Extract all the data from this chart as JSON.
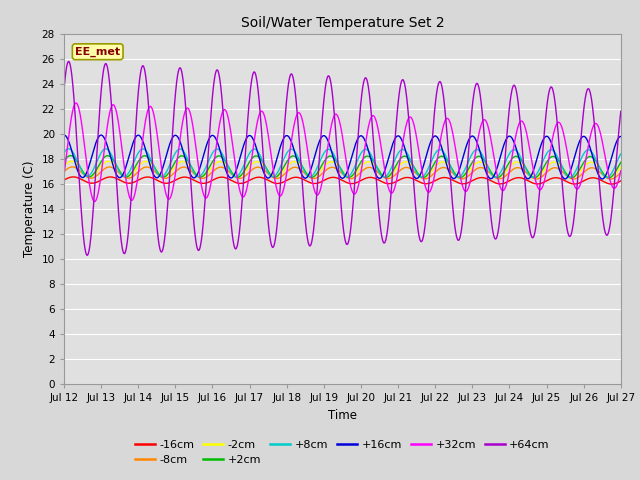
{
  "title": "Soil/Water Temperature Set 2",
  "xlabel": "Time",
  "ylabel": "Temperature (C)",
  "ylim": [
    0,
    28
  ],
  "yticks": [
    0,
    2,
    4,
    6,
    8,
    10,
    12,
    14,
    16,
    18,
    20,
    22,
    24,
    26,
    28
  ],
  "xtick_labels": [
    "Jul 12",
    "Jul 13",
    "Jul 14",
    "Jul 15",
    "Jul 16",
    "Jul 17",
    "Jul 18",
    "Jul 19",
    "Jul 20",
    "Jul 21",
    "Jul 22",
    "Jul 23",
    "Jul 24",
    "Jul 25",
    "Jul 26",
    "Jul 27"
  ],
  "series": [
    {
      "label": "-16cm",
      "color": "#ff0000",
      "base": 16.3,
      "amplitude": 0.25,
      "phase": 0.0,
      "trend": -0.005,
      "decay": 0.0
    },
    {
      "label": "-8cm",
      "color": "#ff8800",
      "base": 16.9,
      "amplitude": 0.45,
      "phase": 0.05,
      "trend": -0.005,
      "decay": 0.0
    },
    {
      "label": "-2cm",
      "color": "#ffff00",
      "base": 17.2,
      "amplitude": 0.6,
      "phase": 0.1,
      "trend": -0.005,
      "decay": 0.0
    },
    {
      "label": "+2cm",
      "color": "#00bb00",
      "base": 17.4,
      "amplitude": 0.85,
      "phase": 0.15,
      "trend": -0.005,
      "decay": 0.0
    },
    {
      "label": "+8cm",
      "color": "#00cccc",
      "base": 17.7,
      "amplitude": 1.1,
      "phase": 0.25,
      "trend": -0.006,
      "decay": 0.0
    },
    {
      "label": "+16cm",
      "color": "#0000dd",
      "base": 18.2,
      "amplitude": 1.7,
      "phase": 0.5,
      "trend": -0.008,
      "decay": 0.0
    },
    {
      "label": "+32cm",
      "color": "#ff00ff",
      "base": 18.5,
      "amplitude": 4.0,
      "phase": -0.15,
      "trend": -0.02,
      "decay": 0.03
    },
    {
      "label": "+64cm",
      "color": "#aa00cc",
      "base": 18.0,
      "amplitude": 7.8,
      "phase": 0.25,
      "trend": -0.02,
      "decay": 0.02
    }
  ],
  "annotation_text": "EE_met",
  "bg_color": "#d8d8d8",
  "plot_bg_color": "#e0e0e0",
  "grid_color": "#ffffff",
  "linewidth": 1.0
}
